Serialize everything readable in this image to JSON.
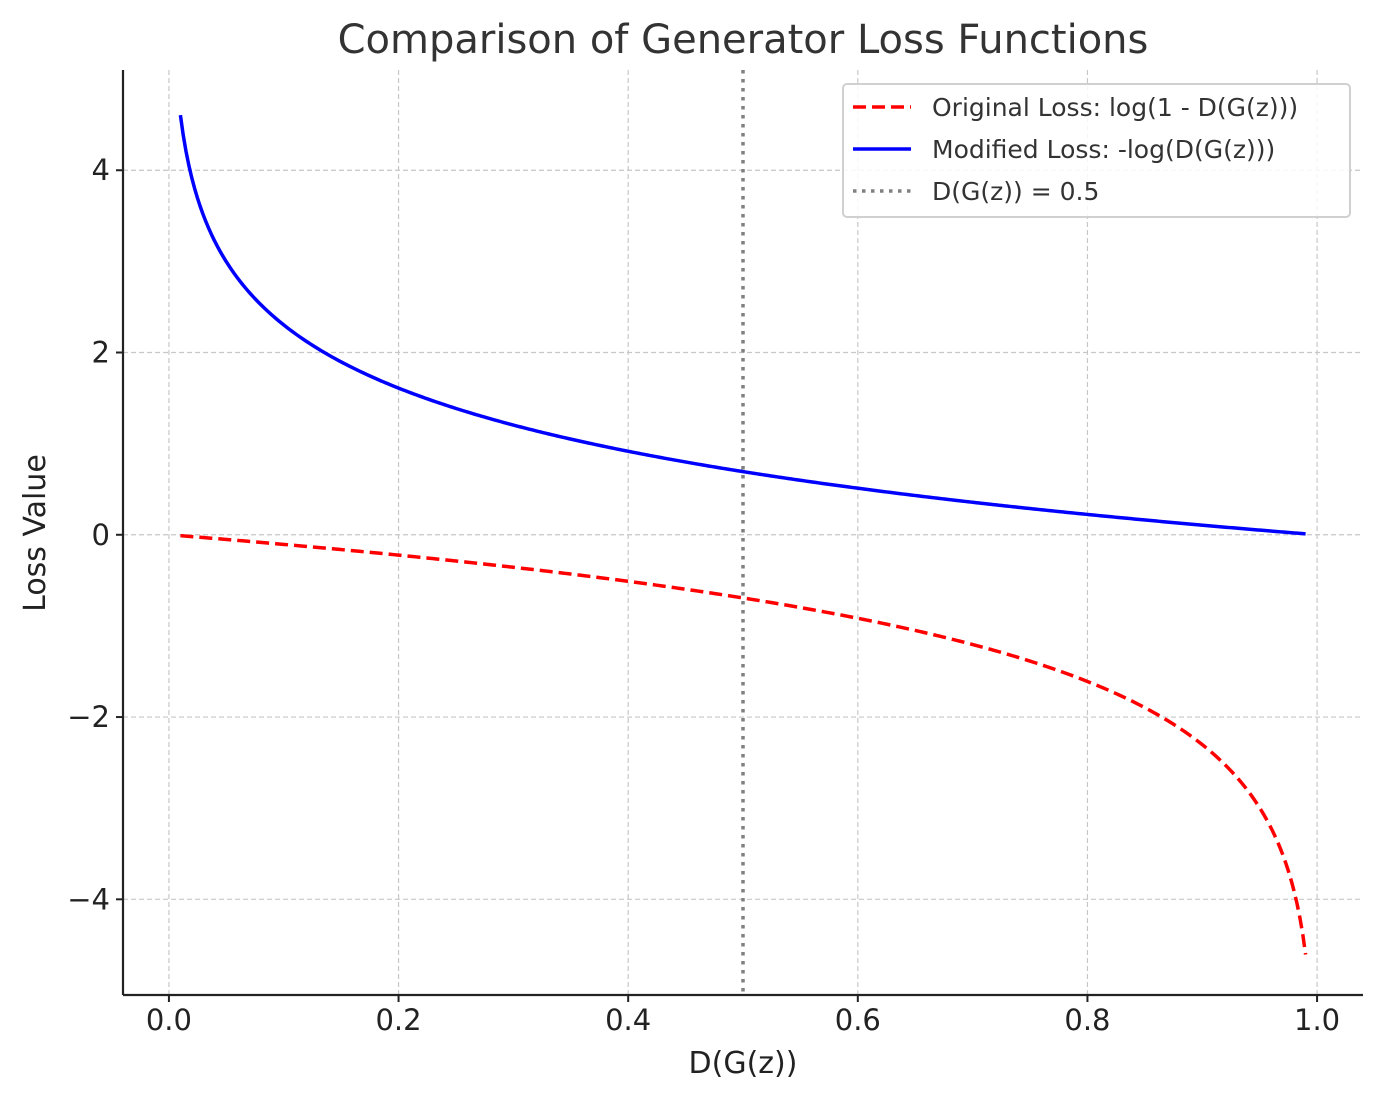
{
  "chart_data": {
    "type": "line",
    "title": "Comparison of Generator Loss Functions",
    "xlabel": "D(G(z))",
    "ylabel": "Loss Value",
    "xlim": [
      -0.04,
      1.04
    ],
    "ylim": [
      -5.05,
      5.1
    ],
    "x_ticks": [
      0.0,
      0.2,
      0.4,
      0.6,
      0.8,
      1.0
    ],
    "x_tick_labels": [
      "0.0",
      "0.2",
      "0.4",
      "0.6",
      "0.8",
      "1.0"
    ],
    "y_ticks": [
      -4,
      -2,
      0,
      2,
      4
    ],
    "y_tick_labels": [
      "−4",
      "−2",
      "0",
      "2",
      "4"
    ],
    "grid": true,
    "legend_position": "top-right",
    "x_range": [
      0.01,
      0.99
    ],
    "series": [
      {
        "name": "Original Loss: log(1 - D(G(z)))",
        "function": "log(1 - x)",
        "color": "#ff0000",
        "line_style": "dashed",
        "x": [
          0.01,
          0.1,
          0.2,
          0.3,
          0.4,
          0.5,
          0.6,
          0.7,
          0.8,
          0.9,
          0.95,
          0.99
        ],
        "y": [
          -0.01,
          -0.105,
          -0.223,
          -0.357,
          -0.511,
          -0.693,
          -0.916,
          -1.204,
          -1.609,
          -2.303,
          -2.996,
          -4.605
        ]
      },
      {
        "name": "Modified Loss: -log(D(G(z)))",
        "function": "-log(x)",
        "color": "#0000ff",
        "line_style": "solid",
        "x": [
          0.01,
          0.02,
          0.05,
          0.1,
          0.2,
          0.3,
          0.4,
          0.5,
          0.6,
          0.7,
          0.8,
          0.9,
          0.99
        ],
        "y": [
          4.605,
          3.912,
          2.996,
          2.303,
          1.609,
          1.204,
          0.916,
          0.693,
          0.511,
          0.357,
          0.223,
          0.105,
          0.01
        ]
      }
    ],
    "reference_line": {
      "name": "D(G(z)) = 0.5",
      "orientation": "vertical",
      "x": 0.5,
      "color": "#808080",
      "line_style": "dotted"
    }
  }
}
